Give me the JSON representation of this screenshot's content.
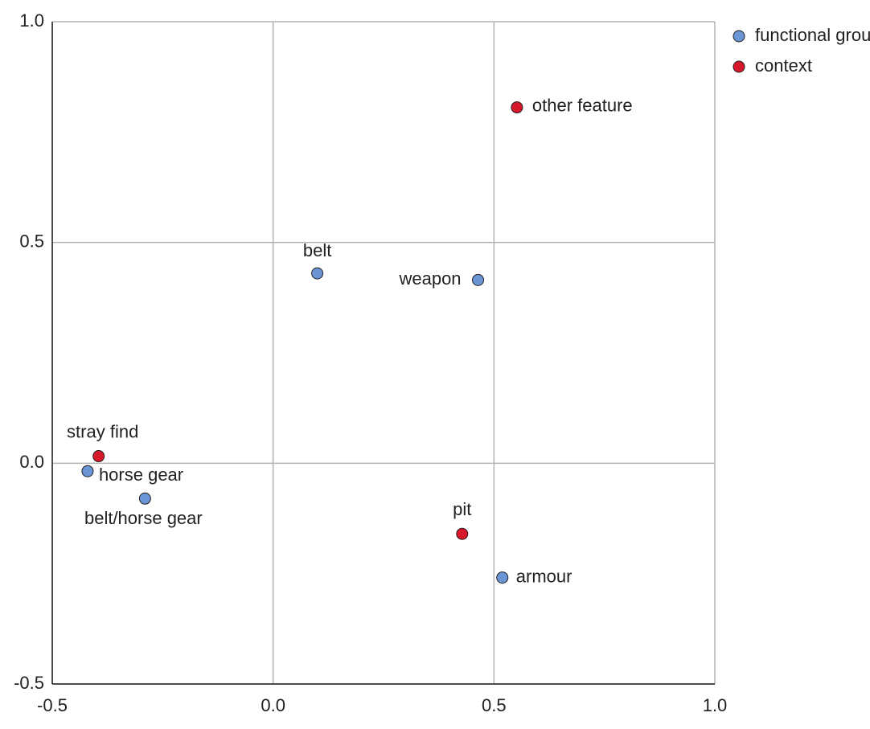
{
  "chart_data": {
    "type": "scatter",
    "xlim": [
      -0.5,
      1.0
    ],
    "ylim": [
      -0.5,
      1.0
    ],
    "xticks": [
      {
        "value": -0.5,
        "label": "-0.5"
      },
      {
        "value": 0,
        "label": "0.0"
      },
      {
        "value": 0.5,
        "label": "0.5"
      },
      {
        "value": 1,
        "label": "1.0"
      }
    ],
    "yticks": [
      {
        "value": -0.5,
        "label": "-0.5"
      },
      {
        "value": 0,
        "label": "0.0"
      },
      {
        "value": 0.5,
        "label": "0.5"
      },
      {
        "value": 1,
        "label": "1.0"
      }
    ],
    "grid": true,
    "legend": "right",
    "series": [
      {
        "name": "functional group",
        "color": "#6a96d6",
        "labels": [
          "belt",
          "weapon",
          "horse gear",
          "belt/horse gear",
          "armour"
        ],
        "x": [
          0.1,
          0.464,
          -0.42,
          -0.29,
          0.519
        ],
        "values": [
          0.43,
          0.415,
          -0.018,
          -0.08,
          -0.259
        ]
      },
      {
        "name": "context",
        "color": "#d7182a",
        "labels": [
          "other feature",
          "stray find",
          "pit"
        ],
        "x": [
          0.552,
          -0.395,
          0.428
        ],
        "values": [
          0.806,
          0.016,
          -0.16
        ]
      }
    ]
  }
}
